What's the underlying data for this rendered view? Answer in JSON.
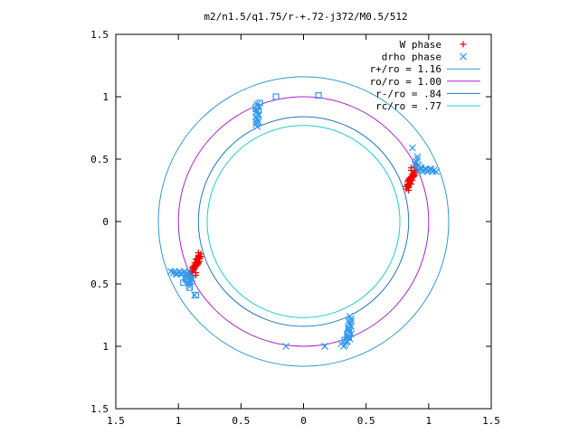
{
  "chart_data": {
    "type": "scatter",
    "title": "m2/n1.5/q1.75/r-+.72-j372/M0.5/512",
    "xlim": [
      -1.5,
      1.5
    ],
    "ylim": [
      -1.5,
      1.5
    ],
    "x_ticks": [
      {
        "value": -1.5,
        "label": "1.5"
      },
      {
        "value": -1.0,
        "label": "1"
      },
      {
        "value": -0.5,
        "label": "0.5"
      },
      {
        "value": 0,
        "label": "0"
      },
      {
        "value": 0.5,
        "label": "0.5"
      },
      {
        "value": 1.0,
        "label": "1"
      },
      {
        "value": 1.5,
        "label": "1.5"
      }
    ],
    "y_ticks": [
      {
        "value": 1.5,
        "label": "1.5"
      },
      {
        "value": 1.0,
        "label": "1"
      },
      {
        "value": 0.5,
        "label": "0.5"
      },
      {
        "value": 0,
        "label": "0"
      },
      {
        "value": -0.5,
        "label": "0.5"
      },
      {
        "value": -1.0,
        "label": "1"
      },
      {
        "value": -1.5,
        "label": "1.5"
      }
    ],
    "legend_position": "top-right",
    "circles": [
      {
        "name": "r+/ro = 1.16",
        "radius": 1.16,
        "color": "#3399cc"
      },
      {
        "name": "ro/ro = 1.00",
        "radius": 1.0,
        "color": "#aa22cc"
      },
      {
        "name": "r-/ro = .84",
        "radius": 0.84,
        "color": "#2277bb"
      },
      {
        "name": "rc/ro = .77",
        "radius": 0.77,
        "color": "#22cccc"
      }
    ],
    "series": [
      {
        "name": "W phase",
        "marker": "plus",
        "color": "#ee0000",
        "clusters": [
          {
            "x": [
              0.82,
              0.84,
              0.83,
              0.85,
              0.86,
              0.84,
              0.87,
              0.88,
              0.83,
              0.85,
              0.86,
              0.88,
              0.9,
              0.84,
              0.86,
              0.87,
              0.85,
              0.83,
              0.89,
              0.91,
              0.86,
              0.88,
              0.84,
              0.82,
              0.85,
              0.87,
              0.89,
              0.9,
              0.86,
              0.84
            ],
            "y": [
              0.26,
              0.28,
              0.3,
              0.31,
              0.33,
              0.34,
              0.35,
              0.37,
              0.29,
              0.32,
              0.36,
              0.38,
              0.4,
              0.27,
              0.3,
              0.33,
              0.35,
              0.32,
              0.39,
              0.42,
              0.41,
              0.36,
              0.25,
              0.28,
              0.3,
              0.38,
              0.37,
              0.44,
              0.43,
              0.33
            ]
          },
          {
            "x": [
              -0.82,
              -0.84,
              -0.83,
              -0.85,
              -0.86,
              -0.84,
              -0.87,
              -0.88,
              -0.83,
              -0.85,
              -0.86,
              -0.88,
              -0.9,
              -0.84,
              -0.86,
              -0.87,
              -0.85,
              -0.83,
              -0.89,
              -0.91,
              -0.86,
              -0.88,
              -0.84,
              -0.82,
              -0.85,
              -0.87,
              -0.89,
              -0.9,
              -0.86,
              -0.84
            ],
            "y": [
              -0.26,
              -0.28,
              -0.3,
              -0.31,
              -0.33,
              -0.34,
              -0.35,
              -0.37,
              -0.29,
              -0.32,
              -0.36,
              -0.38,
              -0.4,
              -0.27,
              -0.3,
              -0.33,
              -0.35,
              -0.32,
              -0.39,
              -0.42,
              -0.41,
              -0.36,
              -0.25,
              -0.28,
              -0.3,
              -0.38,
              -0.37,
              -0.44,
              -0.43,
              -0.33
            ]
          }
        ]
      },
      {
        "name": "drho phase",
        "marker": "cross",
        "color": "#3399ee",
        "clusters": [
          {
            "x": [
              0.92,
              0.94,
              0.96,
              0.98,
              1.0,
              1.02,
              1.04,
              1.06,
              0.93,
              0.95,
              0.97,
              0.99,
              1.01,
              1.03,
              0.9,
              0.91,
              0.89,
              0.9,
              0.92,
              0.94,
              0.91,
              0.87
            ],
            "y": [
              0.41,
              0.42,
              0.41,
              0.42,
              0.41,
              0.42,
              0.41,
              0.4,
              0.43,
              0.4,
              0.42,
              0.4,
              0.42,
              0.4,
              0.48,
              0.52,
              0.46,
              0.44,
              0.45,
              0.43,
              0.5,
              0.59
            ]
          },
          {
            "x": [
              -0.92,
              -0.94,
              -0.96,
              -0.98,
              -1.0,
              -1.02,
              -1.04,
              -1.06,
              -0.93,
              -0.95,
              -0.97,
              -0.99,
              -1.01,
              -1.03,
              -0.9,
              -0.91,
              -0.89,
              -0.9,
              -0.92,
              -0.94,
              -0.91,
              -0.87
            ],
            "y": [
              -0.41,
              -0.42,
              -0.41,
              -0.42,
              -0.41,
              -0.42,
              -0.41,
              -0.4,
              -0.43,
              -0.4,
              -0.42,
              -0.4,
              -0.42,
              -0.4,
              -0.48,
              -0.52,
              -0.46,
              -0.44,
              -0.45,
              -0.43,
              -0.5,
              -0.59
            ]
          },
          {
            "x": [
              -0.37,
              -0.38,
              -0.36,
              -0.37,
              -0.38,
              -0.36,
              -0.37,
              -0.38,
              -0.36,
              -0.37,
              -0.38,
              -0.36,
              -0.37,
              -0.38
            ],
            "y": [
              0.76,
              0.78,
              0.8,
              0.82,
              0.84,
              0.86,
              0.88,
              0.9,
              0.92,
              0.94,
              0.8,
              0.85,
              0.79,
              0.87
            ]
          },
          {
            "x": [
              0.37,
              0.38,
              0.36,
              0.37,
              0.38,
              0.36,
              0.37,
              0.38,
              0.36,
              0.37,
              0.38,
              0.36,
              0.35,
              0.34,
              0.33,
              0.32,
              0.17,
              0.35
            ],
            "y": [
              -0.76,
              -0.78,
              -0.8,
              -0.82,
              -0.84,
              -0.86,
              -0.88,
              -0.9,
              -0.92,
              -0.94,
              -0.8,
              -0.85,
              -0.96,
              -0.97,
              -0.99,
              -1.0,
              -1.0,
              -0.93
            ]
          }
        ]
      },
      {
        "name": "",
        "marker": "square",
        "color": "#3399ee",
        "clusters": [
          {
            "x": [
              -0.35,
              -0.38,
              -0.36,
              -0.22,
              0.12
            ],
            "y": [
              0.95,
              0.92,
              0.89,
              1.0,
              1.01
            ]
          },
          {
            "x": [
              -0.9,
              -0.93,
              -0.91,
              -0.96,
              -0.94,
              -0.86,
              -0.92
            ],
            "y": [
              -0.45,
              -0.47,
              -0.53,
              -0.49,
              -0.46,
              -0.59,
              -0.48
            ]
          },
          {
            "x": [
              0.35,
              0.36,
              0.33,
              0.36
            ],
            "y": [
              -0.9,
              -0.93,
              -0.95,
              -0.87
            ]
          }
        ]
      },
      {
        "name": "",
        "marker": "cross",
        "color": "#3399ee",
        "clusters": [
          {
            "x": [
              -0.14,
              0.17,
              0.3,
              0.35
            ],
            "y": [
              -1.0,
              -1.0,
              -0.98,
              -0.96
            ]
          }
        ]
      }
    ]
  }
}
